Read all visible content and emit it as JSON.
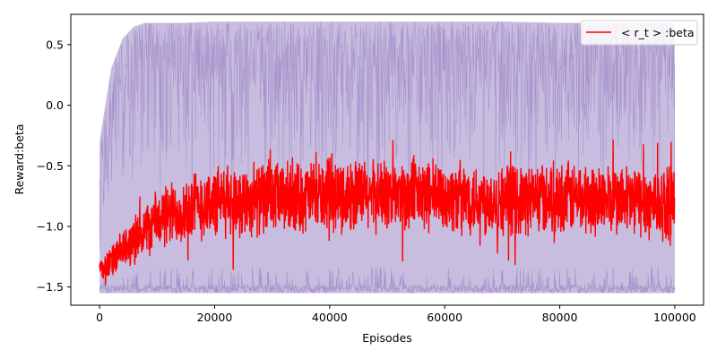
{
  "chart_data": {
    "type": "line",
    "xlabel": "Episodes",
    "ylabel": "Reward:beta",
    "xlim": [
      -5000,
      105000
    ],
    "ylim": [
      -1.65,
      0.75
    ],
    "xticks": [
      0,
      20000,
      40000,
      60000,
      80000,
      100000
    ],
    "xtick_labels": [
      "0",
      "20000",
      "40000",
      "60000",
      "80000",
      "100000"
    ],
    "yticks": [
      -1.5,
      -1.0,
      -0.5,
      0.0,
      0.5
    ],
    "ytick_labels": [
      "−1.5",
      "−1.0",
      "−0.5",
      "0.0",
      "0.5"
    ],
    "grid": false,
    "legend": {
      "placement": "top-right",
      "entries": [
        "< r_t > :beta"
      ]
    },
    "band": {
      "color": "#9b86c4",
      "x": [
        0,
        2000,
        4000,
        6000,
        8000,
        10000,
        15000,
        20000,
        30000,
        40000,
        50000,
        60000,
        70000,
        80000,
        90000,
        100000
      ],
      "lower": [
        -1.55,
        -1.55,
        -1.55,
        -1.55,
        -1.55,
        -1.55,
        -1.55,
        -1.55,
        -1.55,
        -1.55,
        -1.55,
        -1.55,
        -1.55,
        -1.55,
        -1.55,
        -1.55
      ],
      "upper": [
        -0.3,
        0.3,
        0.55,
        0.65,
        0.68,
        0.68,
        0.68,
        0.69,
        0.69,
        0.69,
        0.69,
        0.69,
        0.69,
        0.68,
        0.68,
        0.68
      ]
    },
    "series": [
      {
        "name": "< r_t > :beta",
        "color": "#ff0000",
        "x": [
          0,
          2000,
          5000,
          10000,
          15000,
          20000,
          30000,
          40000,
          50000,
          60000,
          70000,
          80000,
          90000,
          100000
        ],
        "mean": [
          -1.35,
          -1.3,
          -1.15,
          -0.95,
          -0.85,
          -0.8,
          -0.77,
          -0.75,
          -0.74,
          -0.75,
          -0.78,
          -0.76,
          -0.78,
          -0.82
        ],
        "spread": [
          0.08,
          0.15,
          0.2,
          0.28,
          0.32,
          0.33,
          0.33,
          0.33,
          0.33,
          0.33,
          0.33,
          0.33,
          0.33,
          0.35
        ]
      }
    ]
  }
}
